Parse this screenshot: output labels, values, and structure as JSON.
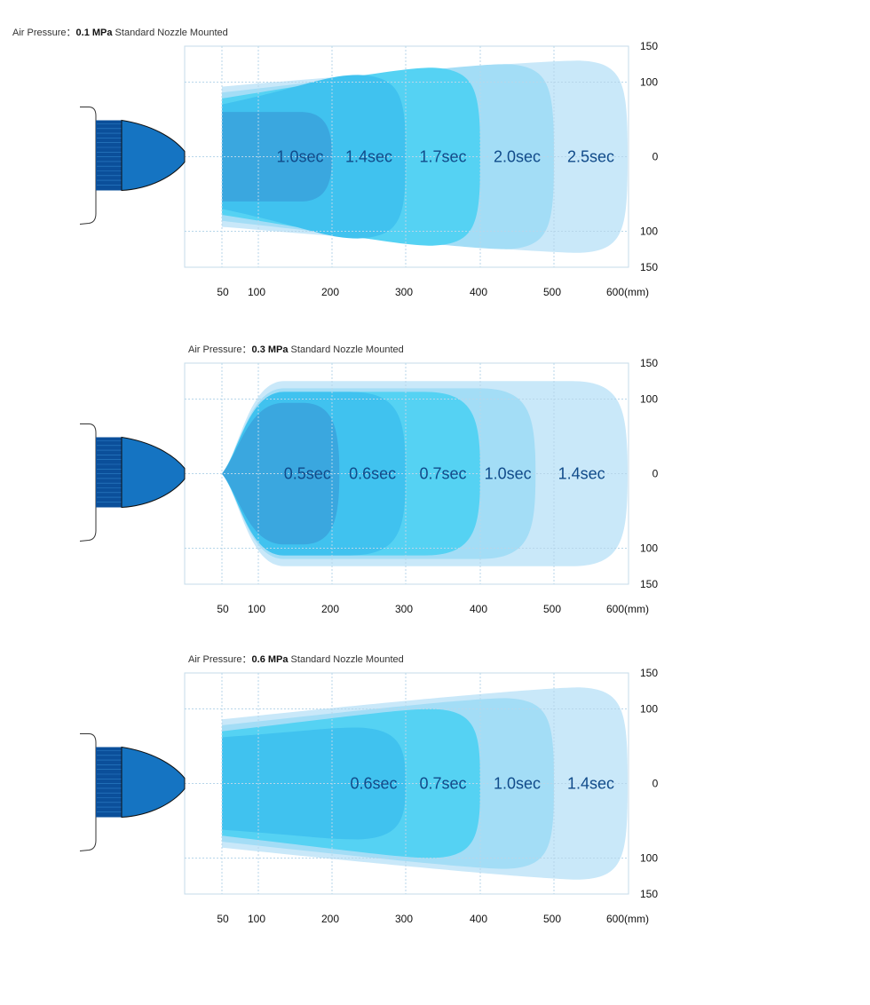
{
  "figure": {
    "x_unit": "(mm)",
    "x_ticks": [
      "50",
      "100",
      "200",
      "300",
      "400",
      "500",
      "600"
    ],
    "y_ticks_top": [
      "150",
      "100",
      "0",
      "100",
      "150"
    ],
    "colors": {
      "grid": "#b7d6ea",
      "frame": "#c5dbea",
      "label": "#114b8a",
      "nozzle_dark": "#0b4f9a",
      "nozzle_body": "#1574c2",
      "zone_fills": [
        "#3aa7df",
        "#40c2ef",
        "#55d2f3",
        "#a3ddf6",
        "#c9e8f9"
      ]
    }
  },
  "chart_data": [
    {
      "type": "area",
      "title_prefix": "Air Pressure：",
      "pressure": "0.1 MPa",
      "title_suffix": " Standard Nozzle Mounted",
      "xlim": [
        0,
        600
      ],
      "ylim": [
        -150,
        150
      ],
      "zones": [
        {
          "label": "1.0sec",
          "reach_mm": 200,
          "half_width_mm": 60
        },
        {
          "label": "1.4sec",
          "reach_mm": 300,
          "half_width_mm": 110
        },
        {
          "label": "1.7sec",
          "reach_mm": 400,
          "half_width_mm": 120
        },
        {
          "label": "2.0sec",
          "reach_mm": 500,
          "half_width_mm": 125
        },
        {
          "label": "2.5sec",
          "reach_mm": 600,
          "half_width_mm": 130
        }
      ]
    },
    {
      "type": "area",
      "title_prefix": "Air Pressure：",
      "pressure": "0.3 MPa",
      "title_suffix": " Standard Nozzle Mounted",
      "xlim": [
        0,
        600
      ],
      "ylim": [
        -150,
        150
      ],
      "zones": [
        {
          "label": "0.5sec",
          "reach_mm": 210,
          "half_width_mm": 95
        },
        {
          "label": "0.6sec",
          "reach_mm": 300,
          "half_width_mm": 110
        },
        {
          "label": "0.7sec",
          "reach_mm": 400,
          "half_width_mm": 110
        },
        {
          "label": "1.0sec",
          "reach_mm": 475,
          "half_width_mm": 115
        },
        {
          "label": "1.4sec",
          "reach_mm": 600,
          "half_width_mm": 125
        }
      ]
    },
    {
      "type": "area",
      "title_prefix": "Air Pressure：",
      "pressure": "0.6 MPa",
      "title_suffix": " Standard Nozzle Mounted",
      "xlim": [
        0,
        600
      ],
      "ylim": [
        -150,
        150
      ],
      "zones": [
        {
          "label": "0.6sec",
          "reach_mm": 300,
          "half_width_mm": 75
        },
        {
          "label": "0.7sec",
          "reach_mm": 400,
          "half_width_mm": 100
        },
        {
          "label": "1.0sec",
          "reach_mm": 500,
          "half_width_mm": 115
        },
        {
          "label": "1.4sec",
          "reach_mm": 600,
          "half_width_mm": 130
        }
      ]
    }
  ]
}
